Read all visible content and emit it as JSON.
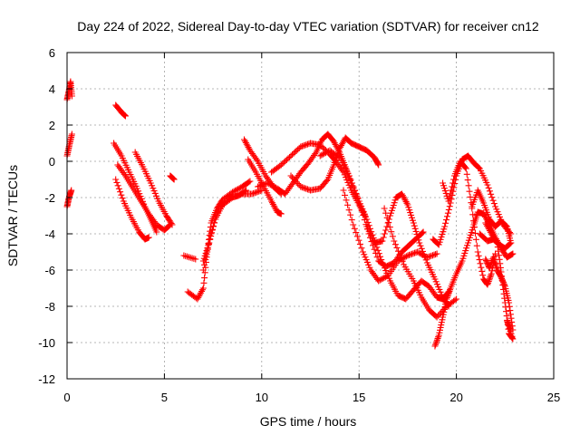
{
  "chart_data": {
    "type": "scatter",
    "title": "Day 224 of 2022, Sidereal Day-to-day VTEC variation (SDTVAR) for receiver cn12",
    "xlabel": "GPS time / hours",
    "ylabel": "SDTVAR / TECUs",
    "xlim": [
      0,
      25
    ],
    "ylim": [
      -12,
      6
    ],
    "x_ticks": [
      0,
      5,
      10,
      15,
      20,
      25
    ],
    "y_ticks": [
      -12,
      -10,
      -8,
      -6,
      -4,
      -2,
      0,
      2,
      4,
      6
    ],
    "grid": true,
    "marker": "+",
    "color": "#ff0000",
    "series": [
      {
        "name": "s1",
        "points": [
          [
            0.0,
            3.4
          ],
          [
            0.1,
            3.9
          ],
          [
            0.18,
            4.4
          ],
          [
            0.25,
            3.6
          ]
        ]
      },
      {
        "name": "s2",
        "points": [
          [
            0.0,
            -2.5
          ],
          [
            0.1,
            -2.0
          ],
          [
            0.22,
            -1.6
          ]
        ]
      },
      {
        "name": "s3",
        "points": [
          [
            0.0,
            0.3
          ],
          [
            0.12,
            0.9
          ],
          [
            0.25,
            1.5
          ]
        ]
      },
      {
        "name": "s4",
        "points": [
          [
            2.5,
            3.1
          ],
          [
            2.8,
            2.7
          ],
          [
            3.0,
            2.5
          ]
        ]
      },
      {
        "name": "s5",
        "points": [
          [
            2.4,
            1.0
          ],
          [
            2.8,
            0.3
          ],
          [
            3.2,
            -0.6
          ],
          [
            3.6,
            -1.5
          ],
          [
            4.0,
            -2.5
          ],
          [
            4.3,
            -3.2
          ],
          [
            4.6,
            -3.9
          ]
        ]
      },
      {
        "name": "s6",
        "points": [
          [
            2.5,
            -1.0
          ],
          [
            2.9,
            -2.2
          ],
          [
            3.3,
            -3.1
          ],
          [
            3.7,
            -3.9
          ],
          [
            4.0,
            -4.3
          ],
          [
            4.2,
            -4.2
          ]
        ]
      },
      {
        "name": "s7",
        "points": [
          [
            2.6,
            -0.2
          ],
          [
            3.0,
            -0.8
          ],
          [
            3.4,
            -1.5
          ],
          [
            3.8,
            -2.2
          ],
          [
            4.2,
            -2.9
          ],
          [
            4.6,
            -3.5
          ],
          [
            5.0,
            -3.8
          ],
          [
            5.3,
            -3.5
          ]
        ]
      },
      {
        "name": "s8",
        "points": [
          [
            3.5,
            0.5
          ],
          [
            3.9,
            -0.3
          ],
          [
            4.3,
            -1.2
          ],
          [
            4.7,
            -2.2
          ],
          [
            5.1,
            -3.0
          ],
          [
            5.4,
            -3.5
          ]
        ]
      },
      {
        "name": "s9",
        "points": [
          [
            5.3,
            -0.8
          ],
          [
            5.5,
            -1.0
          ]
        ]
      },
      {
        "name": "s10",
        "points": [
          [
            6.0,
            -5.2
          ],
          [
            6.6,
            -5.4
          ]
        ]
      },
      {
        "name": "s11",
        "points": [
          [
            6.2,
            -7.2
          ],
          [
            6.7,
            -7.6
          ],
          [
            7.0,
            -7.0
          ],
          [
            7.2,
            -5.0
          ],
          [
            7.4,
            -3.4
          ],
          [
            7.7,
            -2.6
          ],
          [
            8.0,
            -2.1
          ],
          [
            8.5,
            -1.7
          ],
          [
            9.0,
            -1.4
          ],
          [
            9.4,
            -1.1
          ]
        ]
      },
      {
        "name": "s12",
        "points": [
          [
            7.0,
            -5.5
          ],
          [
            7.3,
            -4.5
          ],
          [
            7.6,
            -3.2
          ],
          [
            8.0,
            -2.4
          ],
          [
            8.5,
            -2.0
          ],
          [
            9.0,
            -1.8
          ],
          [
            9.5,
            -1.8
          ],
          [
            10.0,
            -1.6
          ]
        ]
      },
      {
        "name": "s13",
        "points": [
          [
            7.0,
            -6.0
          ],
          [
            7.4,
            -4.0
          ],
          [
            7.8,
            -2.6
          ],
          [
            8.4,
            -2.0
          ],
          [
            8.8,
            -1.9
          ],
          [
            9.2,
            -1.6
          ]
        ]
      },
      {
        "name": "s14",
        "points": [
          [
            9.1,
            1.2
          ],
          [
            9.4,
            0.6
          ],
          [
            9.8,
            0.0
          ],
          [
            10.2,
            -0.8
          ],
          [
            10.6,
            -1.4
          ],
          [
            11.0,
            -1.8
          ]
        ]
      },
      {
        "name": "s15",
        "points": [
          [
            9.3,
            0.1
          ],
          [
            9.7,
            -0.6
          ],
          [
            10.1,
            -1.4
          ],
          [
            10.5,
            -2.2
          ],
          [
            10.8,
            -2.8
          ],
          [
            11.0,
            -2.9
          ]
        ]
      },
      {
        "name": "s16",
        "points": [
          [
            10.5,
            -0.6
          ],
          [
            11.0,
            -0.2
          ],
          [
            11.5,
            0.3
          ],
          [
            12.0,
            0.8
          ],
          [
            12.5,
            1.0
          ],
          [
            13.0,
            0.9
          ],
          [
            13.5,
            0.4
          ],
          [
            13.8,
            0.0
          ],
          [
            14.2,
            -0.6
          ],
          [
            14.6,
            -1.6
          ],
          [
            15.0,
            -2.4
          ],
          [
            15.3,
            -3.0
          ]
        ]
      },
      {
        "name": "s17",
        "points": [
          [
            9.8,
            -1.4
          ],
          [
            10.3,
            -1.2
          ],
          [
            10.8,
            -1.5
          ],
          [
            11.2,
            -1.8
          ],
          [
            11.6,
            -1.2
          ],
          [
            12.0,
            -0.6
          ],
          [
            12.4,
            -0.1
          ],
          [
            12.8,
            0.5
          ],
          [
            13.1,
            1.2
          ],
          [
            13.4,
            1.5
          ],
          [
            13.7,
            1.1
          ],
          [
            14.0,
            0.5
          ],
          [
            14.3,
            -0.3
          ],
          [
            14.6,
            -1.2
          ],
          [
            15.0,
            -2.2
          ],
          [
            15.4,
            -3.2
          ],
          [
            15.8,
            -4.4
          ],
          [
            16.2,
            -5.6
          ],
          [
            16.6,
            -6.6
          ],
          [
            17.0,
            -7.4
          ],
          [
            17.4,
            -7.6
          ],
          [
            17.8,
            -7.1
          ],
          [
            18.2,
            -6.6
          ],
          [
            18.6,
            -6.9
          ],
          [
            19.0,
            -7.5
          ],
          [
            19.3,
            -7.6
          ],
          [
            19.6,
            -7.2
          ]
        ]
      },
      {
        "name": "s18",
        "points": [
          [
            11.5,
            -0.8
          ],
          [
            12.0,
            -1.4
          ],
          [
            12.5,
            -1.6
          ],
          [
            13.0,
            -1.5
          ],
          [
            13.4,
            -1.0
          ],
          [
            13.7,
            -0.2
          ],
          [
            14.0,
            0.7
          ],
          [
            14.3,
            1.3
          ],
          [
            14.6,
            1.0
          ],
          [
            15.0,
            0.8
          ],
          [
            15.4,
            0.6
          ],
          [
            15.8,
            0.2
          ],
          [
            16.0,
            -0.2
          ]
        ]
      },
      {
        "name": "s19",
        "points": [
          [
            13.0,
            0.3
          ],
          [
            13.5,
            0.6
          ],
          [
            14.0,
            0.2
          ],
          [
            14.5,
            -0.8
          ],
          [
            15.0,
            -2.2
          ],
          [
            15.5,
            -4.0
          ],
          [
            16.0,
            -5.5
          ],
          [
            16.4,
            -5.8
          ],
          [
            16.8,
            -5.6
          ],
          [
            17.2,
            -5.0
          ],
          [
            17.6,
            -4.6
          ],
          [
            18.0,
            -4.2
          ],
          [
            18.3,
            -3.9
          ]
        ]
      },
      {
        "name": "s20",
        "points": [
          [
            14.2,
            -1.6
          ],
          [
            14.7,
            -3.5
          ],
          [
            15.2,
            -5.0
          ],
          [
            15.6,
            -6.0
          ],
          [
            16.0,
            -6.6
          ],
          [
            16.5,
            -6.3
          ],
          [
            17.0,
            -5.5
          ],
          [
            17.5,
            -5.2
          ],
          [
            18.0,
            -5.0
          ],
          [
            18.5,
            -5.3
          ],
          [
            19.0,
            -5.1
          ]
        ]
      },
      {
        "name": "s21",
        "points": [
          [
            15.4,
            -3.6
          ],
          [
            15.8,
            -4.5
          ],
          [
            16.2,
            -4.4
          ],
          [
            16.6,
            -3.0
          ],
          [
            16.9,
            -2.0
          ],
          [
            17.2,
            -1.8
          ],
          [
            17.5,
            -2.4
          ],
          [
            17.8,
            -3.4
          ],
          [
            18.1,
            -4.5
          ],
          [
            18.5,
            -5.6
          ],
          [
            18.9,
            -6.5
          ],
          [
            19.3,
            -7.5
          ],
          [
            19.6,
            -8.0
          ]
        ]
      },
      {
        "name": "s22",
        "points": [
          [
            16.3,
            -2.6
          ],
          [
            16.8,
            -4.4
          ],
          [
            17.3,
            -5.7
          ],
          [
            17.8,
            -6.6
          ],
          [
            18.2,
            -7.5
          ],
          [
            18.6,
            -8.2
          ],
          [
            19.0,
            -8.6
          ],
          [
            19.5,
            -8.0
          ],
          [
            20.0,
            -7.6
          ]
        ]
      },
      {
        "name": "s23",
        "points": [
          [
            18.8,
            -4.3
          ],
          [
            19.1,
            -4.6
          ],
          [
            19.4,
            -3.6
          ],
          [
            19.7,
            -2.3
          ],
          [
            20.0,
            -0.8
          ],
          [
            20.3,
            0.1
          ],
          [
            20.6,
            0.3
          ],
          [
            20.9,
            -0.1
          ],
          [
            21.2,
            -0.4
          ],
          [
            21.6,
            -1.3
          ],
          [
            22.0,
            -2.5
          ],
          [
            22.4,
            -3.5
          ],
          [
            22.8,
            -4.0
          ]
        ]
      },
      {
        "name": "s24",
        "points": [
          [
            18.9,
            -10.2
          ],
          [
            19.1,
            -9.6
          ],
          [
            19.3,
            -8.6
          ],
          [
            19.5,
            -7.6
          ],
          [
            19.7,
            -7.0
          ],
          [
            20.0,
            -6.2
          ],
          [
            20.3,
            -5.5
          ],
          [
            20.6,
            -4.5
          ],
          [
            20.9,
            -3.5
          ],
          [
            21.1,
            -2.8
          ],
          [
            21.4,
            -2.9
          ],
          [
            21.7,
            -3.5
          ],
          [
            22.0,
            -4.2
          ],
          [
            22.3,
            -4.8
          ],
          [
            22.6,
            -5.3
          ],
          [
            22.9,
            -5.1
          ]
        ]
      },
      {
        "name": "s25",
        "points": [
          [
            19.3,
            -1.2
          ],
          [
            19.6,
            -2.2
          ],
          [
            19.9,
            -0.8
          ],
          [
            20.2,
            0.0
          ],
          [
            20.5,
            -0.4
          ],
          [
            20.8,
            -2.6
          ],
          [
            21.1,
            -5.0
          ],
          [
            21.4,
            -6.5
          ],
          [
            21.6,
            -6.8
          ],
          [
            21.8,
            -6.2
          ],
          [
            22.0,
            -5.1
          ]
        ]
      },
      {
        "name": "s26",
        "points": [
          [
            20.8,
            -2.5
          ],
          [
            21.1,
            -1.6
          ],
          [
            21.4,
            -2.3
          ],
          [
            21.7,
            -3.2
          ],
          [
            22.0,
            -3.6
          ],
          [
            22.3,
            -3.3
          ],
          [
            22.6,
            -3.6
          ],
          [
            22.8,
            -4.5
          ]
        ]
      },
      {
        "name": "s27",
        "points": [
          [
            21.5,
            -5.4
          ],
          [
            21.7,
            -5.9
          ],
          [
            21.9,
            -5.3
          ],
          [
            22.1,
            -6.0
          ],
          [
            22.3,
            -6.4
          ],
          [
            22.5,
            -6.9
          ],
          [
            22.7,
            -7.8
          ],
          [
            22.9,
            -9.3
          ]
        ]
      },
      {
        "name": "s28",
        "points": [
          [
            21.5,
            -3.4
          ],
          [
            21.8,
            -4.0
          ],
          [
            22.1,
            -4.5
          ],
          [
            22.3,
            -6.1
          ],
          [
            22.5,
            -7.8
          ],
          [
            22.7,
            -9.5
          ],
          [
            22.9,
            -9.8
          ],
          [
            22.6,
            -8.8
          ],
          [
            22.8,
            -9.3
          ]
        ]
      },
      {
        "name": "s29",
        "points": [
          [
            21.2,
            -4.0
          ],
          [
            21.6,
            -4.4
          ],
          [
            21.9,
            -4.3
          ],
          [
            22.2,
            -4.6
          ],
          [
            22.5,
            -4.8
          ],
          [
            22.8,
            -4.5
          ]
        ]
      }
    ]
  }
}
